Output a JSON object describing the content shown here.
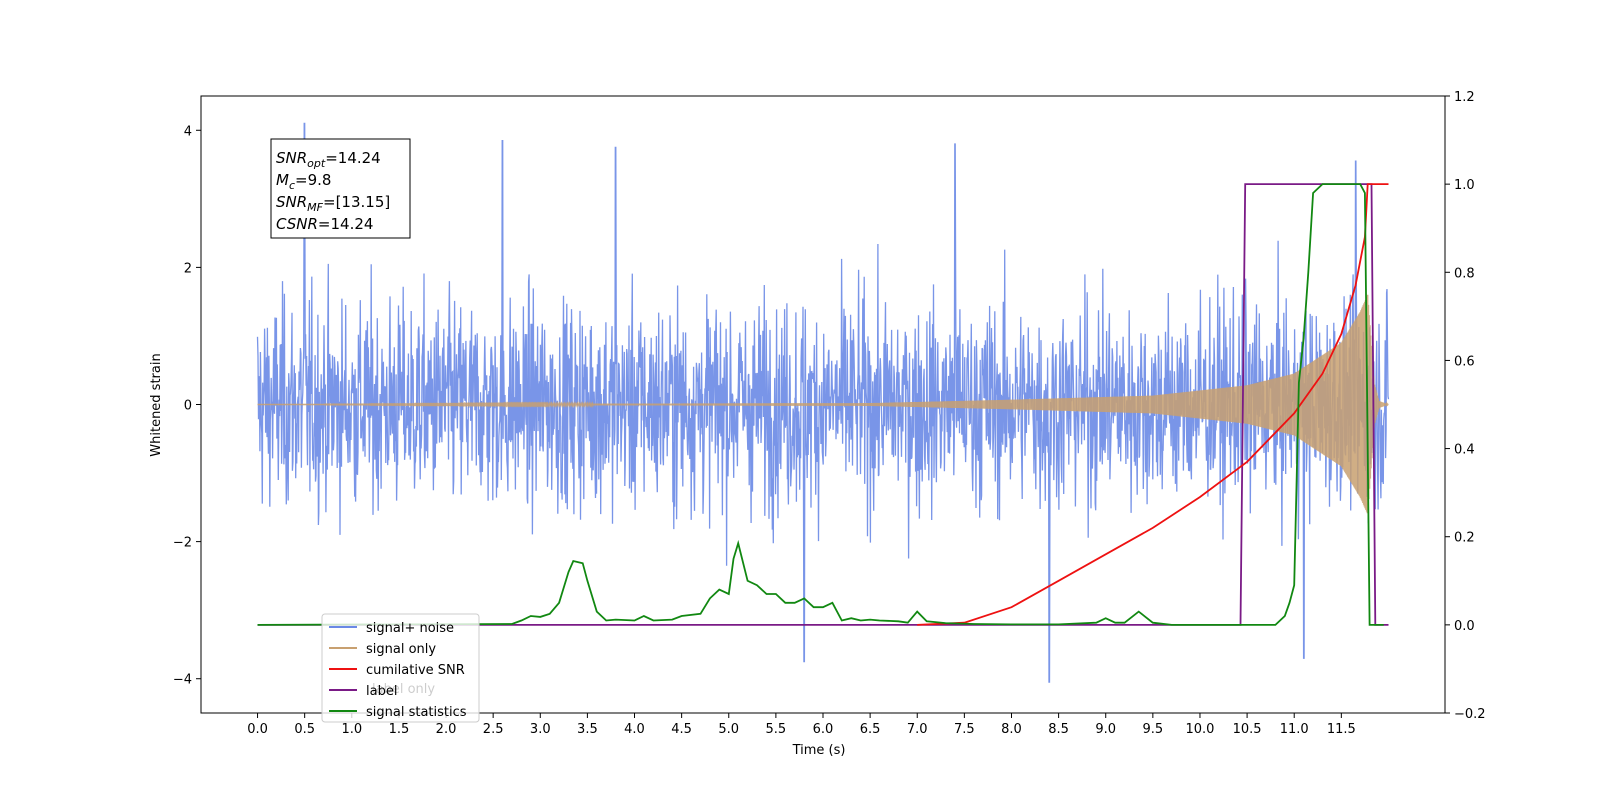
{
  "chart_data": {
    "type": "line",
    "xlabel": "Time (s)",
    "ylabel": "Whitened strain",
    "xlim": [
      -0.6,
      12.6
    ],
    "ylim": [
      -4.5,
      4.5
    ],
    "y2lim": [
      -0.2,
      1.2
    ],
    "x_ticks": [
      "0.0",
      "0.5",
      "1.0",
      "1.5",
      "2.0",
      "2.5",
      "3.0",
      "3.5",
      "4.0",
      "4.5",
      "5.0",
      "5.5",
      "6.0",
      "6.5",
      "7.0",
      "7.5",
      "8.0",
      "8.5",
      "9.0",
      "9.5",
      "10.0",
      "10.5",
      "11.0",
      "11.5"
    ],
    "y_ticks": [
      "4",
      "2",
      "0",
      "−2",
      "−4"
    ],
    "y2_ticks": [
      "1.2",
      "1.0",
      "0.8",
      "0.6",
      "0.4",
      "0.2",
      "0.0",
      "−0.2"
    ],
    "annotation": {
      "lines": [
        {
          "sym": "SNR",
          "sub": "opt",
          "val": "=14.24"
        },
        {
          "sym": "M",
          "sub": "c",
          "val": "=9.8"
        },
        {
          "sym": "SNR",
          "sub": "MF",
          "val": "=[13.15]"
        },
        {
          "sym": "CSNR",
          "sub": "",
          "val": "=14.24"
        }
      ]
    },
    "legend": {
      "placement": "lower-left",
      "entries": [
        "signal+ noise",
        "signal only",
        "cumilative SNR",
        "label",
        "signal statistics"
      ],
      "hidden_entries": [
        "label only"
      ]
    },
    "series": [
      {
        "name": "signal+ noise",
        "axis": "left",
        "color": "#6a89e6",
        "description_stats": {
          "t_start": 0.0,
          "t_end": 12.0,
          "noise_envelope": 2.0,
          "peaks": [
            [
              0.5,
              4.1
            ],
            [
              2.6,
              3.85
            ],
            [
              3.8,
              3.75
            ],
            [
              7.4,
              3.8
            ],
            [
              8.4,
              -4.05
            ],
            [
              5.8,
              -3.75
            ],
            [
              11.1,
              -3.7
            ],
            [
              11.65,
              3.55
            ]
          ]
        }
      },
      {
        "name": "signal only",
        "axis": "left",
        "color": "#c8a070",
        "envelope": [
          [
            0.0,
            0.0
          ],
          [
            6.5,
            0.02
          ],
          [
            8.0,
            0.07
          ],
          [
            9.5,
            0.13
          ],
          [
            10.5,
            0.28
          ],
          [
            11.0,
            0.45
          ],
          [
            11.5,
            0.9
          ],
          [
            11.7,
            1.35
          ],
          [
            11.78,
            1.6
          ],
          [
            11.85,
            0.3
          ],
          [
            11.9,
            0.05
          ],
          [
            12.0,
            0.0
          ]
        ]
      },
      {
        "name": "cumilative SNR",
        "axis": "right",
        "color": "#ee1111",
        "x": [
          7.0,
          7.5,
          8.0,
          8.5,
          9.0,
          9.5,
          10.0,
          10.5,
          11.0,
          11.3,
          11.5,
          11.65,
          11.75,
          11.78,
          11.8,
          12.0
        ],
        "y": [
          0.0,
          0.005,
          0.04,
          0.1,
          0.16,
          0.22,
          0.29,
          0.37,
          0.48,
          0.57,
          0.66,
          0.77,
          0.88,
          1.0,
          1.0,
          1.0
        ]
      },
      {
        "name": "label",
        "axis": "right",
        "color": "#7a1a86",
        "x": [
          0.0,
          10.43,
          10.48,
          11.82,
          11.86,
          12.0
        ],
        "y": [
          0.0,
          0.0,
          1.0,
          1.0,
          0.0,
          0.0
        ]
      },
      {
        "name": "signal statistics",
        "axis": "right",
        "color": "#118811",
        "x": [
          0.0,
          2.7,
          2.8,
          2.9,
          3.0,
          3.1,
          3.2,
          3.3,
          3.35,
          3.45,
          3.5,
          3.6,
          3.7,
          3.8,
          4.0,
          4.1,
          4.2,
          4.4,
          4.5,
          4.7,
          4.8,
          4.9,
          5.0,
          5.05,
          5.1,
          5.2,
          5.3,
          5.4,
          5.5,
          5.6,
          5.7,
          5.8,
          5.9,
          6.0,
          6.1,
          6.2,
          6.3,
          6.4,
          6.5,
          6.6,
          6.8,
          6.9,
          7.0,
          7.1,
          7.3,
          7.6,
          8.0,
          8.5,
          8.9,
          9.0,
          9.1,
          9.2,
          9.35,
          9.5,
          9.7,
          10.5,
          10.8,
          10.9,
          10.95,
          11.0,
          11.05,
          11.1,
          11.15,
          11.2,
          11.3,
          11.5,
          11.7,
          11.75,
          11.8,
          11.85,
          11.95
        ],
        "y": [
          0.0,
          0.002,
          0.01,
          0.02,
          0.018,
          0.025,
          0.05,
          0.12,
          0.145,
          0.14,
          0.1,
          0.03,
          0.01,
          0.012,
          0.01,
          0.02,
          0.01,
          0.012,
          0.02,
          0.025,
          0.06,
          0.08,
          0.07,
          0.15,
          0.185,
          0.1,
          0.09,
          0.07,
          0.07,
          0.05,
          0.05,
          0.06,
          0.04,
          0.04,
          0.05,
          0.01,
          0.015,
          0.01,
          0.012,
          0.01,
          0.008,
          0.005,
          0.03,
          0.008,
          0.004,
          0.002,
          0.001,
          0.001,
          0.005,
          0.015,
          0.005,
          0.005,
          0.03,
          0.005,
          0.0,
          0.0,
          0.0,
          0.02,
          0.05,
          0.09,
          0.55,
          0.65,
          0.8,
          0.98,
          1.0,
          1.0,
          1.0,
          0.98,
          0.0,
          0.0,
          0.0
        ]
      }
    ]
  }
}
